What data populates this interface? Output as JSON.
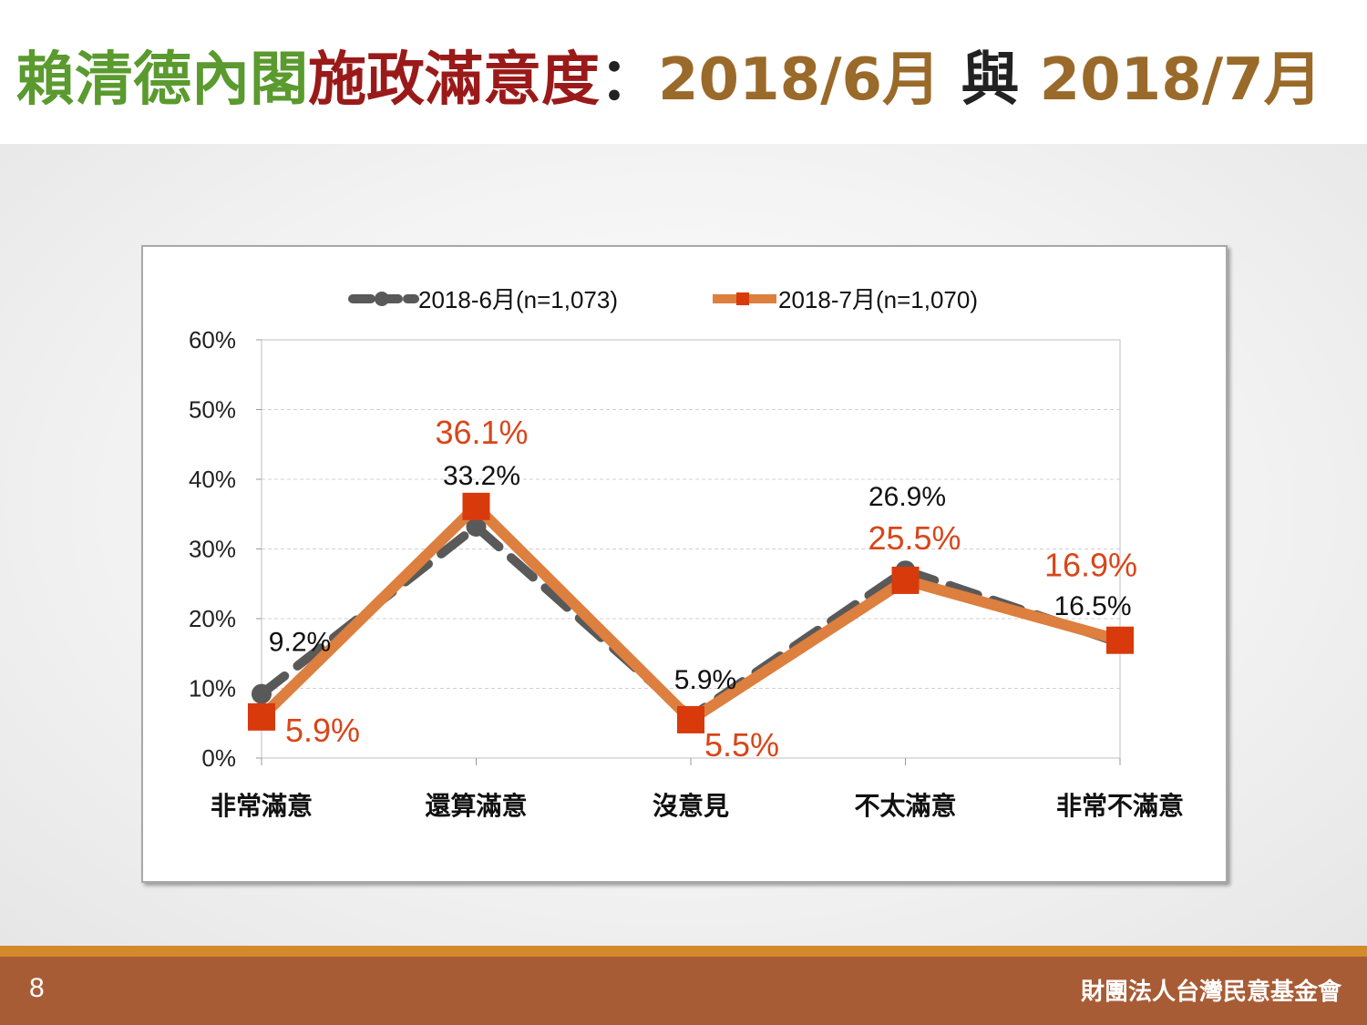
{
  "title": {
    "part1": "賴清德內閣",
    "part2": "施政滿意度",
    "sep": "：",
    "part3": "2018/6月",
    "part4": " 與 ",
    "part5": "2018/7月"
  },
  "colors": {
    "title_green": "#5a9a2e",
    "title_red": "#9a1a1a",
    "title_brown": "#9a6a2a",
    "title_black": "#222222",
    "series_june": "#595959",
    "series_july": "#dd7f3e",
    "marker_july": "#d83a0c",
    "label_july": "#d8461a",
    "footer": "#a85c35",
    "footer_stripe": "#d48a2a"
  },
  "footer": {
    "page_number": "8",
    "organization": "財團法人台灣民意基金會"
  },
  "chart_data": {
    "type": "line",
    "categories": [
      "非常滿意",
      "還算滿意",
      "沒意見",
      "不太滿意",
      "非常不滿意"
    ],
    "ylim": [
      0,
      60
    ],
    "yticks": [
      "0%",
      "10%",
      "20%",
      "30%",
      "40%",
      "50%",
      "60%"
    ],
    "grid": true,
    "legend_position": "top",
    "series": [
      {
        "name": "2018-6月(n=1,073)",
        "values": [
          9.2,
          33.2,
          5.9,
          26.9,
          16.5
        ],
        "labels": [
          "9.2%",
          "33.2%",
          "5.9%",
          "26.9%",
          "16.5%"
        ],
        "style": "dashed",
        "marker": "circle"
      },
      {
        "name": "2018-7月(n=1,070)",
        "values": [
          5.9,
          36.1,
          5.5,
          25.5,
          16.9
        ],
        "labels": [
          "5.9%",
          "36.1%",
          "5.5%",
          "25.5%",
          "16.9%"
        ],
        "style": "solid",
        "marker": "square"
      }
    ]
  }
}
